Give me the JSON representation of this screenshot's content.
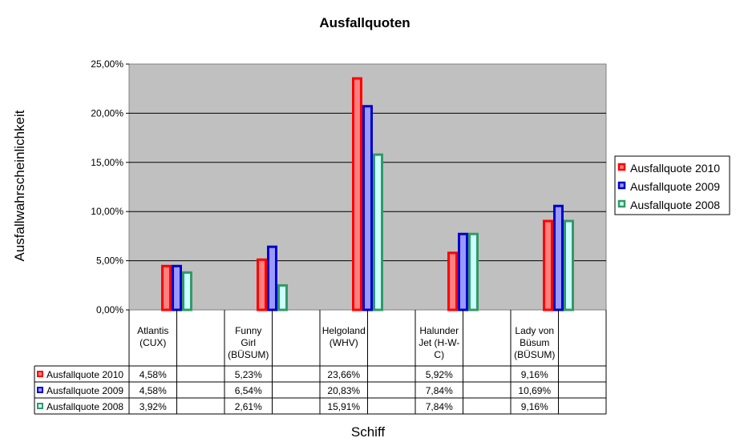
{
  "chart_data": {
    "type": "bar",
    "title": "Ausfallquoten",
    "xlabel": "Schiff",
    "ylabel": "Ausfallwahrscheinlichkeit",
    "ylim": [
      0,
      25
    ],
    "yticks": [
      "0,00%",
      "5,00%",
      "10,00%",
      "15,00%",
      "20,00%",
      "25,00%"
    ],
    "grid": true,
    "legend_position": "right",
    "categories": [
      [
        "Atlantis",
        "(CUX)"
      ],
      [
        "Funny",
        "Girl",
        "(BÜSUM)"
      ],
      [
        "Helgoland",
        "(WHV)"
      ],
      [
        "Halunder",
        "Jet (H-W-",
        "C)"
      ],
      [
        "Lady von",
        "Büsum",
        "(BÜSUM)"
      ]
    ],
    "series": [
      {
        "name": "Ausfallquote 2010",
        "values": [
          4.58,
          5.23,
          23.66,
          5.92,
          9.16
        ],
        "labels": [
          "4,58%",
          "5,23%",
          "23,66%",
          "5,92%",
          "9,16%"
        ],
        "stroke": "#ff0000",
        "fill": "#ff8080"
      },
      {
        "name": "Ausfallquote 2009",
        "values": [
          4.58,
          6.54,
          20.83,
          7.84,
          10.69
        ],
        "labels": [
          "4,58%",
          "6,54%",
          "20,83%",
          "7,84%",
          "10,69%"
        ],
        "stroke": "#0000cc",
        "fill": "#9999ff"
      },
      {
        "name": "Ausfallquote 2008",
        "values": [
          3.92,
          2.61,
          15.91,
          7.84,
          9.16
        ],
        "labels": [
          "3,92%",
          "2,61%",
          "15,91%",
          "7,84%",
          "9,16%"
        ],
        "stroke": "#339966",
        "fill": "#ccffff"
      }
    ],
    "plot_background": "#c0c0c0"
  }
}
